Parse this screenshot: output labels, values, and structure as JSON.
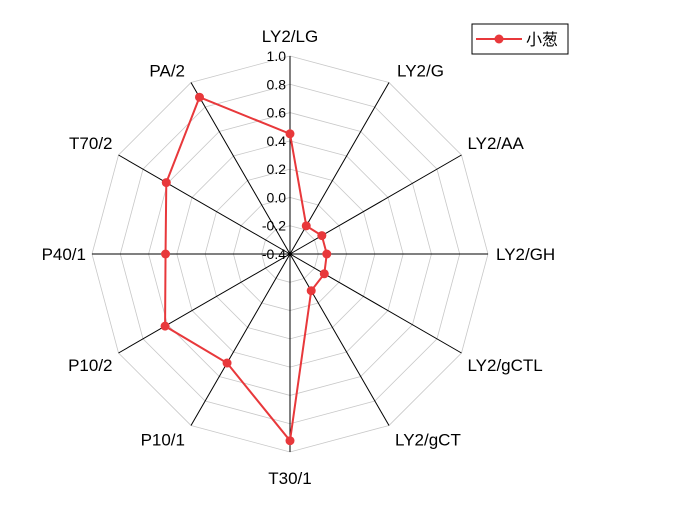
{
  "chart_data": {
    "type": "radar",
    "axes": [
      "LY2/LG",
      "LY2/G",
      "LY2/AA",
      "LY2/GH",
      "LY2/gCTL",
      "LY2/gCT",
      "T30/1",
      "P10/1",
      "P10/2",
      "P40/1",
      "T70/2",
      "PA/2"
    ],
    "rlim": [
      -0.4,
      1.0
    ],
    "ticks": [
      "-0.4",
      "-0.2",
      "0.0",
      "0.2",
      "0.4",
      "0.6",
      "0.8",
      "1.0"
    ],
    "tick_values": [
      -0.4,
      -0.2,
      0.0,
      0.2,
      0.4,
      0.6,
      0.8,
      1.0
    ],
    "grid": true,
    "legend_position": "top-right",
    "series": [
      {
        "name": "小葱",
        "color": "#e8383b",
        "values": [
          0.45,
          -0.17,
          -0.14,
          -0.14,
          -0.12,
          -0.1,
          0.92,
          0.49,
          0.62,
          0.48,
          0.61,
          0.88
        ]
      }
    ]
  }
}
